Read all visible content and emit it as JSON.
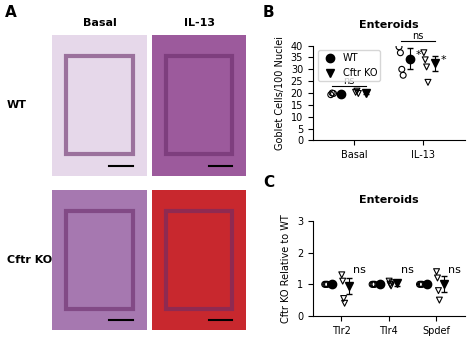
{
  "panel_a": {
    "label": "A",
    "columns": [
      "Basal",
      "IL-13"
    ],
    "rows": [
      "WT",
      "Cftr KO"
    ]
  },
  "chart_data": [
    {
      "type": "scatter",
      "panel_label": "B",
      "title": "Enteroids",
      "y_label": "Goblet Cells/100 Nuclei",
      "categories": [
        "Basal",
        "IL-13"
      ],
      "ylim": [
        0,
        40
      ],
      "yticks": [
        0,
        5,
        10,
        15,
        20,
        25,
        30,
        35,
        40
      ],
      "legend": "upper left",
      "series": [
        {
          "name": "WT",
          "color": "#000000",
          "marker": "circle",
          "values": [
            19.7,
            34.5
          ],
          "errors": [
            0.5,
            4.5
          ],
          "points": [
            [
              19.3,
              20.0,
              19.8
            ],
            [
              39.5,
              37.0,
              30.0,
              27.5
            ]
          ]
        },
        {
          "name": "Cftr KO",
          "color": "#000000",
          "marker": "triangle_down",
          "values": [
            20.2,
            32.5
          ],
          "errors": [
            0.5,
            3.0
          ],
          "points": [
            [
              20.3,
              20.8,
              19.8
            ],
            [
              37.0,
              34.0,
              31.0,
              24.5
            ]
          ]
        }
      ],
      "annotations": [
        {
          "text": "ns",
          "category": "Basal",
          "y": 23
        },
        {
          "text": "ns",
          "category": "IL-13",
          "y": 42
        },
        {
          "text": "*",
          "category": "IL-13",
          "series": "WT",
          "y": 36
        },
        {
          "text": "*",
          "category": "IL-13",
          "series": "Cftr KO",
          "y": 34
        }
      ]
    },
    {
      "type": "scatter",
      "panel_label": "C",
      "title": "Enteroids",
      "y_label": "Cftr KO Relative to WT",
      "categories": [
        "Tlr2",
        "Tlr4",
        "Spdef"
      ],
      "ylim": [
        0,
        3
      ],
      "yticks": [
        0,
        1,
        2,
        3
      ],
      "series": [
        {
          "name": "WT",
          "color": "#000000",
          "marker": "circle",
          "values": [
            1,
            1,
            1
          ],
          "errors": [
            0,
            0,
            0
          ],
          "points": [
            [
              1,
              1,
              1,
              1
            ],
            [
              1,
              1,
              1,
              1
            ],
            [
              1,
              1,
              1,
              1
            ]
          ]
        },
        {
          "name": "Cftr KO",
          "color": "#000000",
          "marker": "triangle_down",
          "values": [
            0.95,
            1.05,
            1.0
          ],
          "errors": [
            0.25,
            0.1,
            0.25
          ],
          "points": [
            [
              1.3,
              1.1,
              0.55,
              0.4
            ],
            [
              1.1,
              1.0,
              0.95,
              1.05
            ],
            [
              1.4,
              1.2,
              0.8,
              0.5
            ]
          ]
        }
      ],
      "annotations": [
        {
          "text": "ns",
          "category": "Tlr2",
          "series": "Cftr KO",
          "y": 1.45
        },
        {
          "text": "ns",
          "category": "Tlr4",
          "series": "Cftr KO",
          "y": 1.45
        },
        {
          "text": "ns",
          "category": "Spdef",
          "series": "Cftr KO",
          "y": 1.45
        }
      ]
    }
  ]
}
